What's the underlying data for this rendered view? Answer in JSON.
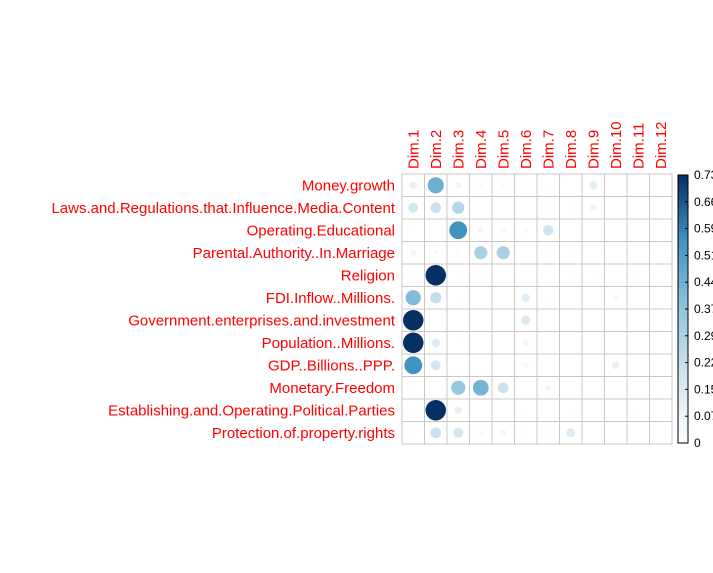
{
  "chart_data": {
    "type": "heatmap",
    "title": "",
    "columns": [
      "Dim.1",
      "Dim.2",
      "Dim.3",
      "Dim.4",
      "Dim.5",
      "Dim.6",
      "Dim.7",
      "Dim.8",
      "Dim.9",
      "Dim.10",
      "Dim.11",
      "Dim.12"
    ],
    "rows": [
      "Money.growth",
      "Laws.and.Regulations.that.Influence.Media.Content",
      "Operating.Educational",
      "Parental.Authority..In.Marriage",
      "Religion",
      "FDI.Inflow..Millions.",
      "Government.enterprises.and.investment",
      "Population..Millions.",
      "GDP..Billions..PPP.",
      "Monetary.Freedom",
      "Establishing.and.Operating.Political.Parties",
      "Protection.of.property.rights"
    ],
    "values": [
      [
        0.1,
        0.45,
        0.07,
        0.03,
        0.03,
        0.0,
        0.01,
        0.0,
        0.12,
        0.0,
        0.0,
        0.0
      ],
      [
        0.17,
        0.2,
        0.26,
        0.0,
        0.0,
        0.0,
        0.02,
        0.02,
        0.07,
        0.0,
        0.0,
        0.0
      ],
      [
        0.01,
        0.0,
        0.55,
        0.06,
        0.05,
        0.04,
        0.19,
        0.0,
        0.0,
        0.0,
        0.0,
        0.0
      ],
      [
        0.06,
        0.04,
        0.03,
        0.3,
        0.3,
        0.0,
        0.02,
        0.01,
        0.0,
        0.0,
        0.0,
        0.0
      ],
      [
        0.02,
        0.73,
        0.02,
        0.02,
        0.0,
        0.0,
        0.0,
        0.02,
        0.01,
        0.0,
        0.01,
        0.0
      ],
      [
        0.4,
        0.22,
        0.01,
        0.0,
        0.0,
        0.12,
        0.01,
        0.0,
        0.0,
        0.04,
        0.0,
        0.0
      ],
      [
        0.73,
        0.0,
        0.0,
        0.0,
        0.0,
        0.15,
        0.0,
        0.0,
        0.0,
        0.0,
        0.0,
        0.0
      ],
      [
        0.73,
        0.13,
        0.01,
        0.0,
        0.0,
        0.06,
        0.0,
        0.0,
        0.0,
        0.0,
        0.0,
        0.0
      ],
      [
        0.55,
        0.17,
        0.0,
        0.0,
        0.0,
        0.05,
        0.0,
        0.0,
        0.0,
        0.1,
        0.0,
        0.0
      ],
      [
        0.01,
        0.0,
        0.35,
        0.43,
        0.2,
        0.0,
        0.06,
        0.0,
        0.0,
        0.0,
        0.0,
        0.0
      ],
      [
        0.01,
        0.73,
        0.1,
        0.0,
        0.0,
        0.01,
        0.0,
        0.02,
        0.0,
        0.0,
        0.01,
        0.0
      ],
      [
        0.02,
        0.2,
        0.17,
        0.04,
        0.06,
        0.02,
        0.01,
        0.14,
        0.0,
        0.0,
        0.0,
        0.0
      ]
    ],
    "legend": {
      "ticks": [
        "0.73",
        "0.66",
        "0.59",
        "0.51",
        "0.44",
        "0.37",
        "0.29",
        "0.22",
        "0.15",
        "0.07",
        "0"
      ],
      "min": 0,
      "max": 0.73,
      "placement": "right"
    },
    "label_color": "#ff0000",
    "grid": true
  }
}
